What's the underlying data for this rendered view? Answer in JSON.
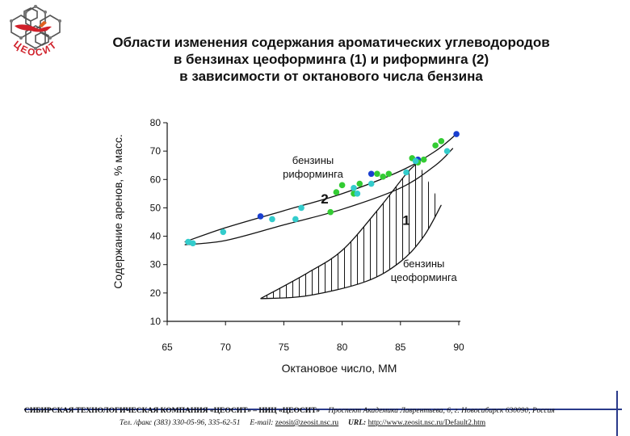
{
  "logo": {
    "text": "ЦЕОСИТ",
    "icon": "zeolite-logo-icon",
    "color": "#d0202a"
  },
  "title": {
    "line1": "Области изменения содержания ароматических углеводородов",
    "line2": "в бензинах цеоформинга (1) и риформинга (2)",
    "line3": "в зависимости от октанового числа  бензина"
  },
  "chart_data": {
    "type": "scatter",
    "xlabel": "Октановое число, ММ",
    "ylabel": "Содержание аренов, % масс.",
    "xlim": [
      65,
      90
    ],
    "ylim": [
      10,
      80
    ],
    "x_ticks": [
      "65",
      "70",
      "75",
      "80",
      "85",
      "90"
    ],
    "y_ticks": [
      "10",
      "20",
      "30",
      "40",
      "50",
      "60",
      "70",
      "80"
    ],
    "grid": false,
    "regions": [
      {
        "label": "2",
        "caption": "бензины риформинга",
        "upper_boundary": [
          [
            66.5,
            38
          ],
          [
            70,
            43
          ],
          [
            75,
            49
          ],
          [
            80,
            55
          ],
          [
            85,
            63
          ],
          [
            88,
            70
          ],
          [
            89.8,
            76
          ]
        ],
        "lower_boundary": [
          [
            66.5,
            37
          ],
          [
            70,
            38.5
          ],
          [
            75,
            44
          ],
          [
            80,
            49.5
          ],
          [
            85,
            57
          ],
          [
            88,
            65
          ],
          [
            89.5,
            71
          ]
        ]
      },
      {
        "label": "1",
        "caption": "бензины цеоформинга",
        "upper_boundary": [
          [
            73,
            18
          ],
          [
            77,
            27
          ],
          [
            80,
            35
          ],
          [
            83,
            49
          ],
          [
            85.5,
            62
          ],
          [
            86.5,
            66
          ]
        ],
        "lower_boundary": [
          [
            73,
            18
          ],
          [
            77,
            19
          ],
          [
            82,
            24
          ],
          [
            85,
            31
          ],
          [
            87,
            40
          ],
          [
            88.5,
            51
          ]
        ]
      }
    ],
    "series": [
      {
        "color": "#1a3fd0",
        "x": [
          73,
          82.5,
          86.5,
          89.8
        ],
        "y": [
          47,
          62,
          67,
          76
        ]
      },
      {
        "color": "#33cc33",
        "x": [
          79,
          79.5,
          80,
          81,
          81.5,
          83,
          83.5,
          84,
          86,
          86.5,
          87,
          88,
          88.5
        ],
        "y": [
          48.5,
          55.5,
          58,
          55,
          58.5,
          62,
          61,
          62,
          67.5,
          66,
          67,
          72,
          73.5
        ]
      },
      {
        "color": "#33cccc",
        "x": [
          66.8,
          67.2,
          69.8,
          74,
          76,
          76.5,
          81,
          81.3,
          82.5,
          85.5,
          86.3,
          89
        ],
        "y": [
          38,
          37.5,
          41.5,
          46,
          46,
          50,
          57,
          55,
          58.5,
          62.5,
          66.5,
          70
        ]
      }
    ]
  },
  "footer": {
    "company": "СИБИРСКАЯ  ТЕХНОЛОГИЧЕСКАЯ  КОМПАНИЯ  «ЦЕОСИТ»  –  НИЦ  «ЦЕОСИТ»",
    "address": "Проспект Академика Лаврентьева, 6,  г. Новосибирск 630090,  Россия",
    "phone": "Тел. /факс (383) 330-05-96, 335-62-51",
    "email_label": "E-mail:",
    "email": "zeosit@zeosit.nsc.ru",
    "url_label": "URL:",
    "url": "http://www.zeosit.nsc.ru/Default2.htm"
  },
  "accent_color": "#2a3a8a"
}
